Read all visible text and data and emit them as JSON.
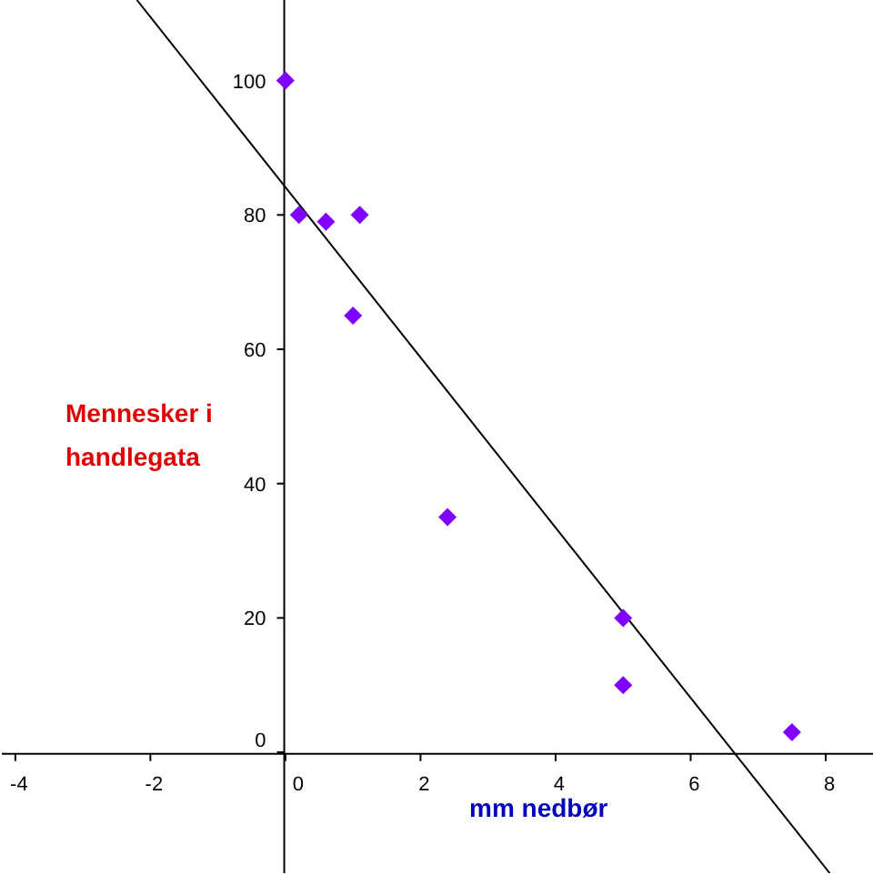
{
  "chart_data": {
    "type": "scatter",
    "xlabel": "mm nedbør",
    "ylabel": "Mennesker i handlegata",
    "xlim": [
      -4.2,
      8.7
    ],
    "ylim": [
      -18,
      112
    ],
    "xticks": [
      -4,
      -2,
      0,
      2,
      4,
      6,
      8
    ],
    "yticks": [
      0,
      20,
      40,
      60,
      80,
      100
    ],
    "grid": false,
    "series": [
      {
        "marker": "diamond",
        "color": "#7f00ff",
        "x": [
          0,
          0.2,
          0.6,
          1.1,
          1,
          2.4,
          5,
          5,
          7.5
        ],
        "values": [
          100,
          80,
          79,
          80,
          65,
          35,
          20,
          10,
          3
        ]
      },
      {
        "type": "line",
        "color": "#000000",
        "x": [
          -2.2,
          8.06
        ],
        "values": [
          112,
          -18
        ]
      }
    ]
  }
}
